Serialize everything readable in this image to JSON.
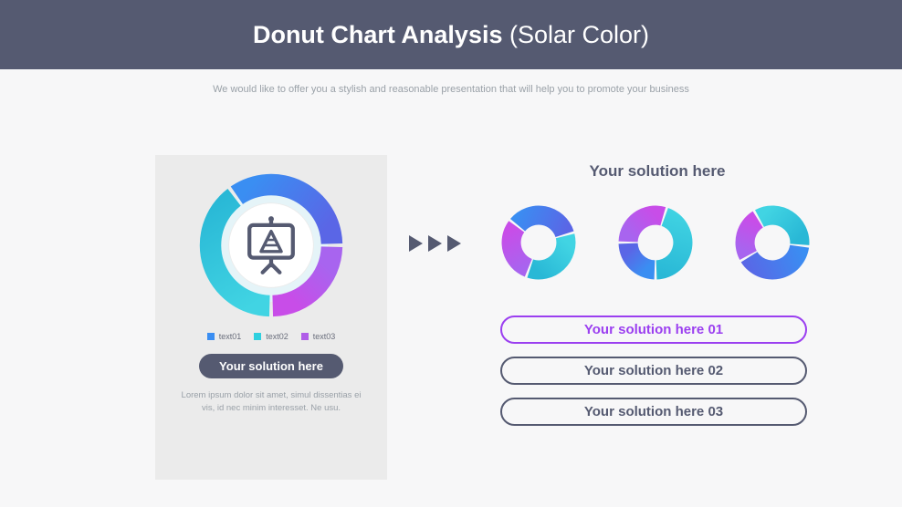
{
  "header": {
    "title_bold": "Donut Chart Analysis",
    "title_rest": " (Solar Color)",
    "bg_color": "#555a71",
    "title_color": "#ffffff",
    "title_fontsize": 27
  },
  "subtitle": {
    "text": "We would like to offer you a stylish and reasonable presentation that will help you to promote your business",
    "color": "#9aa1a8",
    "fontsize": 11
  },
  "page_bg": "#f7f7f8",
  "left_card": {
    "bg_color": "#ebebeb",
    "main_donut": {
      "type": "donut",
      "inner_ratio": 0.7,
      "segments": [
        {
          "value": 40,
          "color_from": "#41d4e3",
          "color_to": "#29b8d6",
          "name": "text02"
        },
        {
          "value": 35,
          "color_from": "#3a8ef2",
          "color_to": "#5a66e6",
          "name": "text01"
        },
        {
          "value": 25,
          "color_from": "#a864ef",
          "color_to": "#c84de8",
          "name": "text03"
        }
      ],
      "gap_deg": 3,
      "inner_ring_color": "#e5f4f8",
      "start_angle_deg": 180
    },
    "center_icon": {
      "name": "presentation-chart-icon",
      "stroke": "#555a71"
    },
    "legend": [
      {
        "label": "text01",
        "color": "#3a8ef2"
      },
      {
        "label": "text02",
        "color": "#2fd0df"
      },
      {
        "label": "text03",
        "color": "#b05de8"
      }
    ],
    "pill": {
      "text": "Your solution here",
      "bg": "#555a71",
      "color": "#ffffff",
      "fontsize": 13
    },
    "lorem": "Lorem ipsum dolor sit amet, simul dissentias ei vis, id nec minim interesset. Ne usu."
  },
  "arrows": {
    "count": 3,
    "color": "#555a71"
  },
  "right": {
    "title": "Your solution here",
    "title_color": "#555a71",
    "title_fontsize": 17,
    "small_donuts": [
      {
        "type": "donut",
        "inner_ratio": 0.48,
        "gap_deg": 4,
        "start_angle_deg": 200,
        "segments": [
          {
            "value": 30,
            "color_from": "#a864ef",
            "color_to": "#c84de8"
          },
          {
            "value": 35,
            "color_from": "#3a8ef2",
            "color_to": "#5a66e6"
          },
          {
            "value": 35,
            "color_from": "#41d4e3",
            "color_to": "#29b8d6"
          }
        ]
      },
      {
        "type": "donut",
        "inner_ratio": 0.48,
        "gap_deg": 4,
        "start_angle_deg": 270,
        "segments": [
          {
            "value": 30,
            "color_from": "#a864ef",
            "color_to": "#c84de8"
          },
          {
            "value": 45,
            "color_from": "#41d4e3",
            "color_to": "#29b8d6"
          },
          {
            "value": 25,
            "color_from": "#3a8ef2",
            "color_to": "#5a66e6"
          }
        ]
      },
      {
        "type": "donut",
        "inner_ratio": 0.48,
        "gap_deg": 4,
        "start_angle_deg": 240,
        "segments": [
          {
            "value": 25,
            "color_from": "#a864ef",
            "color_to": "#c84de8"
          },
          {
            "value": 35,
            "color_from": "#41d4e3",
            "color_to": "#29b8d6"
          },
          {
            "value": 40,
            "color_from": "#3a8ef2",
            "color_to": "#5a66e6"
          }
        ]
      }
    ],
    "pills": [
      {
        "text": "Your solution here 01",
        "border_color": "#9b3ff0",
        "text_color": "#9b3ff0"
      },
      {
        "text": "Your solution here 02",
        "border_color": "#555a71",
        "text_color": "#555a71"
      },
      {
        "text": "Your solution here 03",
        "border_color": "#555a71",
        "text_color": "#555a71"
      }
    ]
  }
}
